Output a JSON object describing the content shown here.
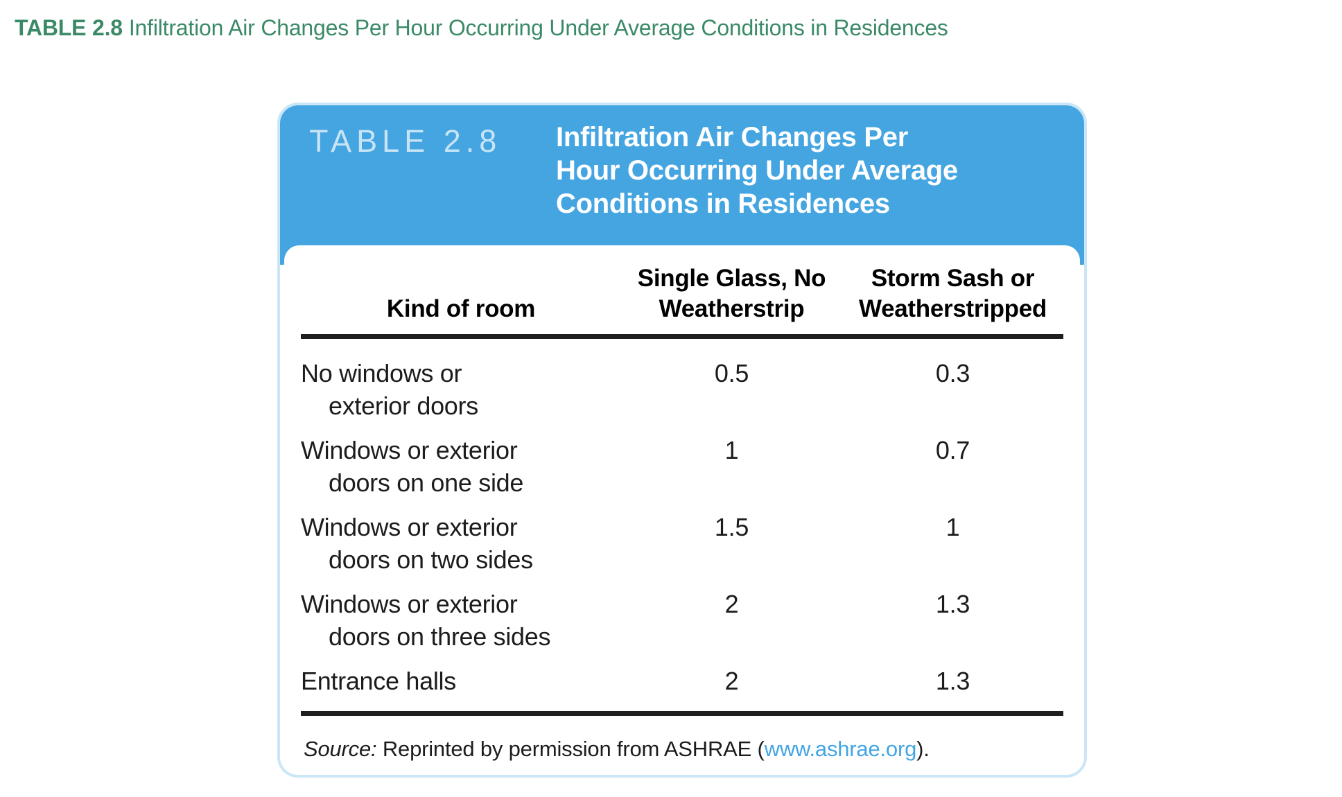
{
  "caption": {
    "label": "TABLE 2.8",
    "text": "Infiltration Air Changes Per Hour Occurring Under Average Conditions in Residences"
  },
  "card": {
    "header": {
      "label": "TABLE 2.8",
      "title_lines": [
        "Infiltration Air Changes Per",
        "Hour Occurring Under Average",
        "Conditions in Residences"
      ]
    },
    "columns": {
      "room": {
        "line1": "Kind of room"
      },
      "single": {
        "line1": "Single Glass, No",
        "line2": "Weatherstrip"
      },
      "storm": {
        "line1": "Storm Sash or",
        "line2": "Weatherstripped"
      }
    },
    "rows": [
      {
        "room1": "No windows or",
        "room2": "exterior doors",
        "single": "0.5",
        "storm": "0.3"
      },
      {
        "room1": "Windows or exterior",
        "room2": "doors on one side",
        "single": "1",
        "storm": "0.7"
      },
      {
        "room1": "Windows or exterior",
        "room2": "doors on two sides",
        "single": "1.5",
        "storm": "1"
      },
      {
        "room1": "Windows or exterior",
        "room2": "doors on three sides",
        "single": "2",
        "storm": "1.3"
      },
      {
        "room1": "Entrance halls",
        "room2": "",
        "single": "2",
        "storm": "1.3"
      }
    ],
    "source": {
      "label": "Source:",
      "before_link": " Reprinted by permission from ASHRAE (",
      "link": "www.ashrae.org",
      "after_link": ")."
    }
  },
  "colors": {
    "heading_green": "#3b8a67",
    "header_blue": "#45a5e1",
    "header_label_blue": "#c8e5f6",
    "card_border_blue": "#cbe6f7",
    "link_blue": "#42a5e4",
    "rule_black": "#1f1f1f"
  }
}
